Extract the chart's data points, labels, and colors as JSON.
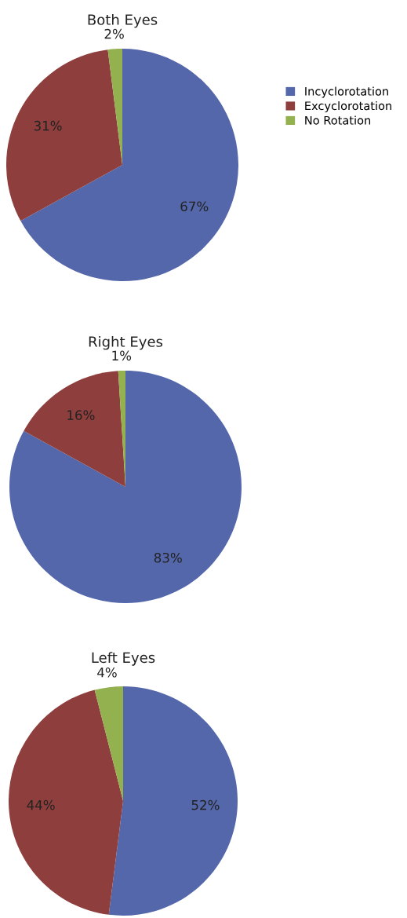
{
  "chart_data": [
    {
      "type": "pie",
      "title": "Both Eyes",
      "categories": [
        "Incyclorotation",
        "Excyclorotation",
        "No Rotation"
      ],
      "values": [
        67,
        31,
        2
      ],
      "colors": [
        "#5467aa",
        "#8e3e3c",
        "#93b14f"
      ],
      "value_labels": [
        "67%",
        "31%",
        "2%"
      ],
      "legend": "right"
    },
    {
      "type": "pie",
      "title": "Right Eyes",
      "categories": [
        null,
        null,
        null
      ],
      "values": [
        83,
        16,
        1
      ],
      "colors": [
        "#5467aa",
        "#8e3e3c",
        "#93b14f"
      ],
      "value_labels": [
        "83%",
        "16%",
        "1%"
      ]
    },
    {
      "type": "pie",
      "title": "Left Eyes",
      "categories": [
        null,
        null,
        null
      ],
      "values": [
        52,
        44,
        4
      ],
      "colors": [
        "#5467aa",
        "#8e3e3c",
        "#93b14f"
      ],
      "value_labels": [
        "52%",
        "44%",
        "4%"
      ]
    }
  ]
}
